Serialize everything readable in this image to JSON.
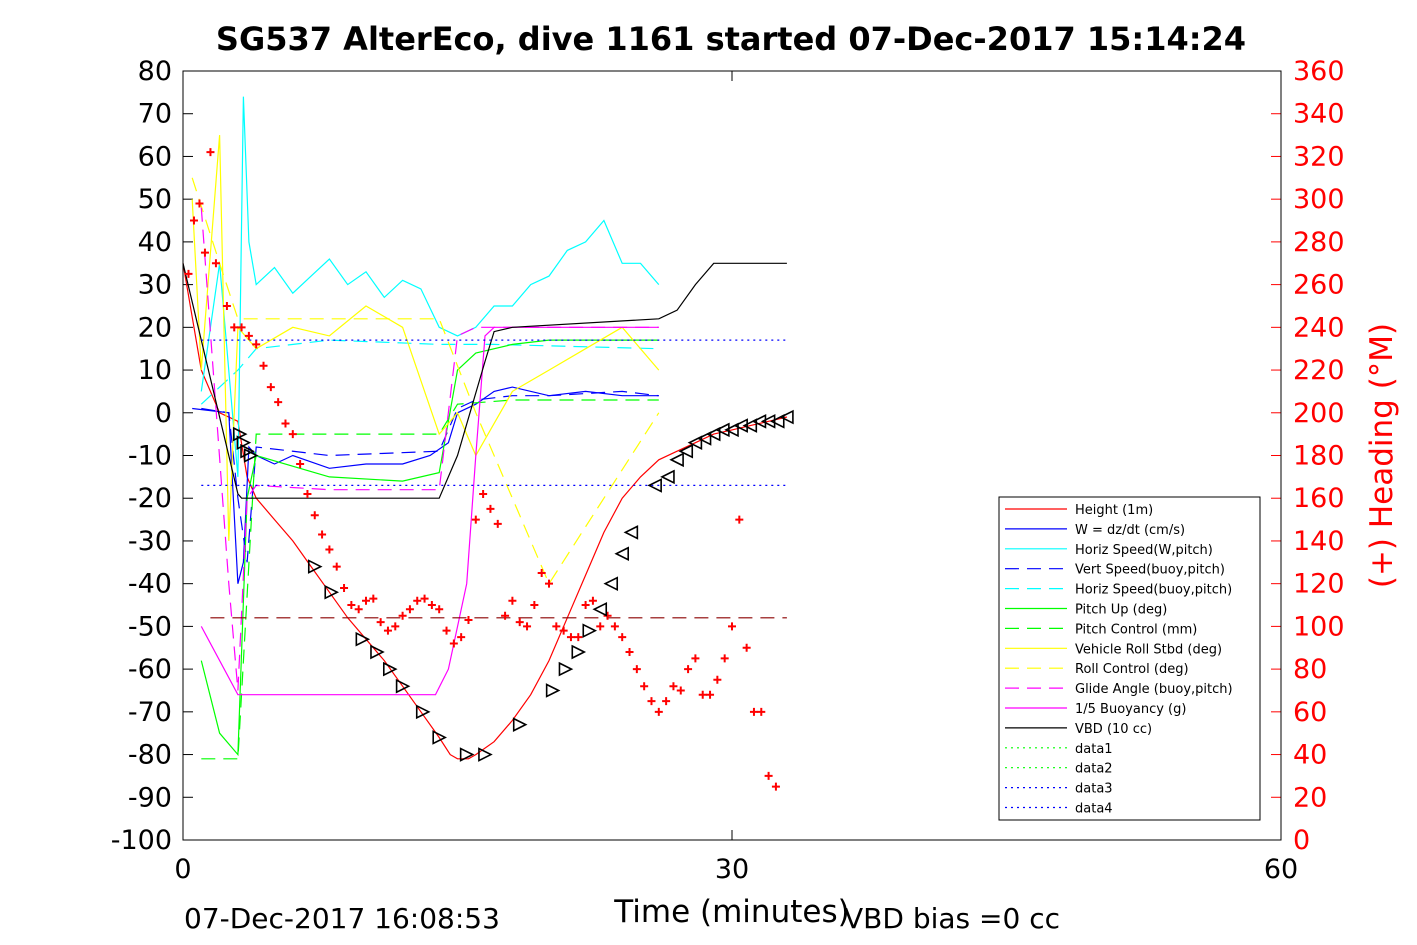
{
  "title": "SG537 AlterEco, dive 1161 started 07-Dec-2017 15:14:24",
  "footer": {
    "timestamp": "07-Dec-2017 16:08:53",
    "vbd_bias": "VBD bias =0 cc"
  },
  "colors": {
    "red": "#ff0000",
    "blue": "#0000ff",
    "cyan": "#00ffff",
    "green": "#00ff00",
    "yellow": "#ffff00",
    "magenta": "#ff00ff",
    "black": "#000000"
  },
  "chart_data": {
    "type": "line",
    "xlabel": "Time (minutes)",
    "ylabel": "",
    "y2label": "(+) Heading (°M)",
    "xlim": [
      0,
      60
    ],
    "ylim": [
      -100,
      80
    ],
    "y2lim": [
      0,
      360
    ],
    "xticks": [
      "0",
      "30",
      "60"
    ],
    "yticks": [
      "80",
      "70",
      "60",
      "50",
      "40",
      "30",
      "20",
      "10",
      "0",
      "-10",
      "-20",
      "-30",
      "-40",
      "-50",
      "-60",
      "-70",
      "-80",
      "-90",
      "-100"
    ],
    "y2ticks": [
      "360",
      "340",
      "320",
      "300",
      "280",
      "260",
      "240",
      "220",
      "200",
      "180",
      "160",
      "140",
      "120",
      "100",
      "80",
      "60",
      "40",
      "20",
      "0"
    ],
    "legend_position": "bottom-right",
    "series": [
      {
        "name": "Height (1m)",
        "color": "#ff0000",
        "style": "solid",
        "x": [
          0,
          1,
          2,
          3,
          3.5,
          4,
          5,
          6,
          7,
          8,
          9,
          10,
          11,
          12,
          13,
          14,
          14.6,
          15,
          15.6,
          16,
          17,
          18,
          19,
          20,
          21,
          22,
          23,
          24,
          25,
          26,
          27,
          28,
          29,
          30,
          31,
          32,
          33
        ],
        "y": [
          35,
          10,
          0,
          -2,
          -15,
          -20,
          -25,
          -30,
          -36,
          -42,
          -48,
          -53,
          -58,
          -64,
          -70,
          -76,
          -80,
          -81,
          -81,
          -80,
          -77,
          -72,
          -66,
          -58,
          -48,
          -38,
          -28,
          -20,
          -15,
          -11,
          -9,
          -7,
          -5,
          -4,
          -3,
          -2,
          -1
        ]
      },
      {
        "name": "W = dz/dt (cm/s)",
        "color": "#0000ff",
        "style": "solid",
        "x": [
          0.5,
          2.5,
          3,
          3.3,
          3.6,
          4,
          5,
          6,
          8,
          10,
          12,
          13.5,
          14.5,
          15,
          16,
          17,
          18,
          20,
          22,
          24,
          26
        ],
        "y": [
          1,
          0,
          -40,
          -35,
          -8,
          -10,
          -12,
          -10,
          -13,
          -12,
          -12,
          -10,
          -7,
          0,
          2,
          5,
          6,
          4,
          5,
          4,
          4
        ]
      },
      {
        "name": "Horiz Speed(W,pitch)",
        "color": "#00ffff",
        "style": "solid",
        "x": [
          1,
          2,
          3,
          3.3,
          3.6,
          4,
          5,
          6,
          7,
          8,
          9,
          10,
          11,
          12,
          13,
          14,
          15,
          16,
          17,
          18,
          19,
          20,
          21,
          22,
          23,
          24,
          25,
          26
        ],
        "y": [
          5,
          35,
          -15,
          74,
          40,
          30,
          34,
          28,
          32,
          36,
          30,
          33,
          27,
          31,
          29,
          20,
          18,
          20,
          25,
          25,
          30,
          32,
          38,
          40,
          45,
          35,
          35,
          30
        ]
      },
      {
        "name": "Vert Speed(buoy,pitch)",
        "color": "#0000ff",
        "style": "dashed",
        "x": [
          1,
          2.5,
          3,
          3.5,
          4,
          8,
          14,
          15,
          16,
          18,
          20,
          24,
          26
        ],
        "y": [
          1,
          0,
          -20,
          -35,
          -8,
          -10,
          -9,
          1,
          3,
          4,
          4,
          5,
          4
        ]
      },
      {
        "name": "Horiz Speed(buoy,pitch)",
        "color": "#00ffff",
        "style": "dashed",
        "x": [
          1,
          3,
          4,
          8,
          14,
          15,
          17,
          26
        ],
        "y": [
          2,
          10,
          15,
          17,
          16,
          16,
          16,
          15
        ]
      },
      {
        "name": "Pitch Up (deg)",
        "color": "#00ff00",
        "style": "solid",
        "x": [
          1,
          2,
          3,
          3.5,
          4,
          8,
          12,
          14,
          15,
          16,
          18,
          20,
          22,
          24,
          26
        ],
        "y": [
          -58,
          -75,
          -80,
          -20,
          -10,
          -15,
          -16,
          -14,
          10,
          14,
          16,
          17,
          17,
          17,
          17
        ]
      },
      {
        "name": "Pitch Control (mm)",
        "color": "#00ff00",
        "style": "dashed",
        "x": [
          1,
          3,
          4,
          14,
          15,
          18,
          26
        ],
        "y": [
          -81,
          -81,
          -5,
          -5,
          2,
          3,
          3
        ]
      },
      {
        "name": "Vehicle Roll Stbd (deg)",
        "color": "#ffff00",
        "style": "solid",
        "x": [
          0.5,
          1,
          2,
          2.5,
          3,
          4,
          6,
          8,
          10,
          12,
          14,
          15,
          16,
          18,
          20,
          22,
          24,
          26
        ],
        "y": [
          50,
          10,
          65,
          -30,
          20,
          15,
          20,
          18,
          25,
          20,
          -5,
          0,
          -10,
          5,
          10,
          15,
          20,
          10
        ]
      },
      {
        "name": "Roll Control (deg)",
        "color": "#ffff00",
        "style": "dashed",
        "x": [
          0.5,
          2,
          3,
          8,
          14,
          16,
          20,
          26
        ],
        "y": [
          55,
          35,
          22,
          22,
          22,
          0,
          -40,
          0
        ]
      },
      {
        "name": "Glide Angle (buoy,pitch)",
        "color": "#ff00ff",
        "style": "dashed",
        "x": [
          1,
          2.5,
          3,
          3.5,
          4,
          8,
          14,
          15,
          16,
          18,
          20,
          24,
          26
        ],
        "y": [
          48,
          -40,
          -65,
          -20,
          -17,
          -18,
          -18,
          18,
          20,
          20,
          20,
          20,
          20
        ]
      },
      {
        "name": "1/5 Buoyancy (g)",
        "color": "#ff00ff",
        "style": "solid",
        "x": [
          1,
          3,
          3.5,
          13.8,
          14.5,
          15.5,
          16,
          16.5,
          17,
          26
        ],
        "y": [
          -50,
          -66,
          -66,
          -66,
          -60,
          -40,
          -10,
          18,
          20,
          20
        ]
      },
      {
        "name": "VBD (10 cc)",
        "color": "#000000",
        "style": "solid",
        "x": [
          0,
          3,
          3.2,
          14,
          15,
          16.5,
          17,
          18,
          26,
          27,
          28,
          29,
          30,
          33
        ],
        "y": [
          35,
          -19,
          -20,
          -20,
          -10,
          12,
          19,
          20,
          22,
          24,
          30,
          35,
          35,
          35
        ]
      },
      {
        "name": "data1",
        "color": "#00ff00",
        "style": "dotted",
        "x": [],
        "y": []
      },
      {
        "name": "data2",
        "color": "#00ff00",
        "style": "dotted",
        "x": [],
        "y": []
      },
      {
        "name": "data3",
        "color": "#0000ff",
        "style": "dotted",
        "x": [
          1,
          33
        ],
        "y": [
          17,
          17
        ]
      },
      {
        "name": "data4",
        "color": "#0000ff",
        "style": "dotted",
        "x": [
          1,
          33
        ],
        "y": [
          -17,
          -17
        ]
      }
    ],
    "reference_lines": [
      {
        "color": "#8b0000",
        "style": "dashed",
        "x": [
          1.5,
          33
        ],
        "y": [
          -48,
          -48
        ]
      }
    ],
    "heading": {
      "marker": "+",
      "color": "#ff0000",
      "axis": "right",
      "x": [
        0.3,
        0.6,
        0.9,
        1.2,
        1.5,
        1.8,
        2.4,
        2.8,
        3.2,
        3.6,
        4.0,
        4.4,
        4.8,
        5.2,
        5.6,
        6.0,
        6.4,
        6.8,
        7.2,
        7.6,
        8.0,
        8.4,
        8.8,
        9.2,
        9.6,
        10.0,
        10.4,
        10.8,
        11.2,
        11.6,
        12.0,
        12.4,
        12.8,
        13.2,
        13.6,
        14.0,
        14.4,
        14.8,
        15.2,
        15.6,
        16.0,
        16.4,
        16.8,
        17.2,
        17.6,
        18.0,
        18.4,
        18.8,
        19.2,
        19.6,
        20.0,
        20.4,
        20.8,
        21.2,
        21.6,
        22.0,
        22.4,
        22.8,
        23.2,
        23.6,
        24.0,
        24.4,
        24.8,
        25.2,
        25.6,
        26.0,
        26.4,
        26.8,
        27.2,
        27.6,
        28.0,
        28.4,
        28.8,
        29.2,
        29.6,
        30.0,
        30.4,
        30.8,
        31.2,
        31.6,
        32.0,
        32.4
      ],
      "y": [
        265,
        290,
        298,
        275,
        322,
        270,
        250,
        240,
        240,
        236,
        232,
        222,
        212,
        205,
        195,
        190,
        176,
        162,
        152,
        143,
        136,
        128,
        118,
        110,
        108,
        112,
        113,
        102,
        98,
        100,
        105,
        108,
        112,
        113,
        110,
        108,
        98,
        92,
        95,
        103,
        150,
        162,
        155,
        148,
        105,
        112,
        102,
        100,
        110,
        125,
        120,
        100,
        98,
        95,
        95,
        110,
        112,
        100,
        105,
        100,
        95,
        88,
        80,
        72,
        65,
        60,
        65,
        72,
        70,
        80,
        85,
        68,
        68,
        75,
        85,
        100,
        150,
        90,
        60,
        60,
        30,
        25
      ]
    },
    "track_markers": {
      "marker": "triangle",
      "color": "#000000",
      "axis": "left",
      "x": [
        3.1,
        3.3,
        3.5,
        3.7,
        7.2,
        8.1,
        9.8,
        10.6,
        11.3,
        12.0,
        13.1,
        14.0,
        15.5,
        16.5,
        18.4,
        20.2,
        20.9,
        21.6,
        22.2,
        22.8,
        23.4,
        24.0,
        24.5,
        25.8,
        26.5,
        27.0,
        27.5,
        28.0,
        28.5,
        29.0,
        29.5,
        30.0,
        30.5,
        31.0,
        31.5,
        32.0,
        32.5,
        33.0
      ],
      "y": [
        -5,
        -7,
        -9,
        -10,
        -36,
        -42,
        -53,
        -56,
        -60,
        -64,
        -70,
        -76,
        -80,
        -80,
        -73,
        -65,
        -60,
        -56,
        -51,
        -46,
        -40,
        -33,
        -28,
        -17,
        -15,
        -11,
        -9,
        -7,
        -6,
        -5,
        -4,
        -4,
        -3,
        -3,
        -2,
        -2,
        -2,
        -1
      ]
    }
  }
}
